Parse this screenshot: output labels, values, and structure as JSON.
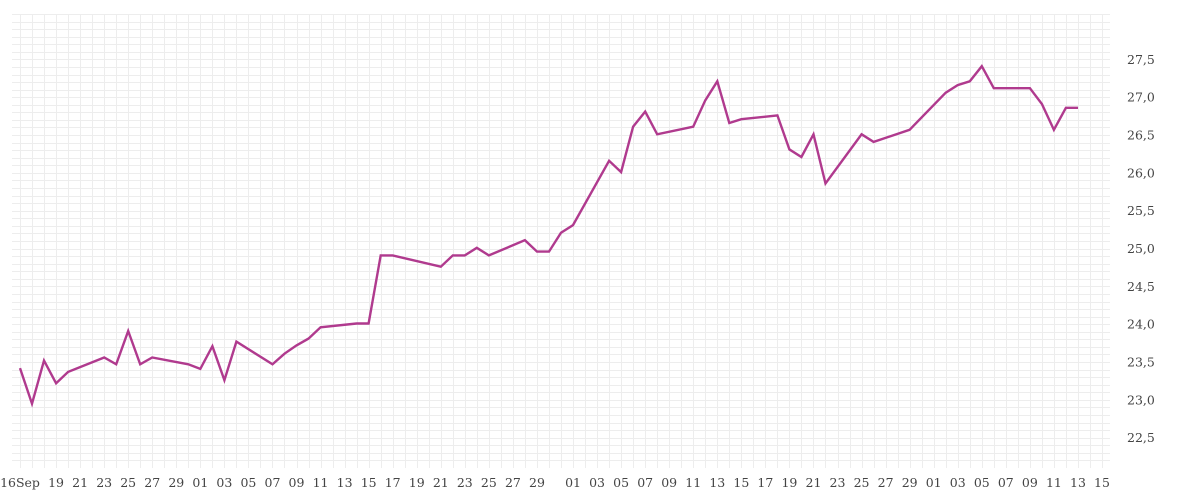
{
  "chart_data": {
    "type": "line",
    "title": "",
    "xlabel": "",
    "ylabel": "",
    "grid": true,
    "line_color": "#b03a8e",
    "grid_color": "#ededed",
    "ylim": [
      22.1,
      28.1
    ],
    "y_ticks": [
      "22,5",
      "23,0",
      "23,5",
      "24,0",
      "24,5",
      "25,0",
      "25,5",
      "26,0",
      "26,5",
      "27,0",
      "27,5"
    ],
    "y_tick_values": [
      22.5,
      23.0,
      23.5,
      24.0,
      24.5,
      25.0,
      25.5,
      26.0,
      26.5,
      27.0,
      27.5
    ],
    "x_tick_labels": [
      "16Sep",
      "19",
      "21",
      "23",
      "25",
      "27",
      "29",
      "01",
      "03",
      "05",
      "07",
      "09",
      "11",
      "13",
      "15",
      "17",
      "19",
      "21",
      "23",
      "25",
      "27",
      "29",
      "01",
      "03",
      "05",
      "07",
      "09",
      "11",
      "13",
      "15",
      "17",
      "19",
      "21",
      "23",
      "25",
      "27",
      "29",
      "01",
      "03",
      "05",
      "07",
      "09",
      "11",
      "13",
      "15"
    ],
    "x_tick_dates": [
      "2025-09-16",
      "2025-09-19",
      "2025-09-21",
      "2025-09-23",
      "2025-09-25",
      "2025-09-27",
      "2025-09-29",
      "2025-10-01",
      "2025-10-03",
      "2025-10-05",
      "2025-10-07",
      "2025-10-09",
      "2025-10-11",
      "2025-10-13",
      "2025-10-15",
      "2025-10-17",
      "2025-10-19",
      "2025-10-21",
      "2025-10-23",
      "2025-10-25",
      "2025-10-27",
      "2025-10-29",
      "2025-11-01",
      "2025-11-03",
      "2025-11-05",
      "2025-11-07",
      "2025-11-09",
      "2025-11-11",
      "2025-11-13",
      "2025-11-15",
      "2025-11-17",
      "2025-11-19",
      "2025-11-21",
      "2025-11-23",
      "2025-11-25",
      "2025-11-27",
      "2025-11-29",
      "2025-12-01",
      "2025-12-03",
      "2025-12-05",
      "2025-12-07",
      "2025-12-09",
      "2025-12-11",
      "2025-12-13",
      "2025-12-15"
    ],
    "xlim": [
      "2025-09-16",
      "2025-12-15"
    ],
    "series": [
      {
        "name": "",
        "x": [
          "2025-09-16",
          "2025-09-17",
          "2025-09-18",
          "2025-09-19",
          "2025-09-20",
          "2025-09-23",
          "2025-09-24",
          "2025-09-25",
          "2025-09-26",
          "2025-09-27",
          "2025-09-30",
          "2025-10-01",
          "2025-10-02",
          "2025-10-03",
          "2025-10-04",
          "2025-10-07",
          "2025-10-08",
          "2025-10-09",
          "2025-10-10",
          "2025-10-11",
          "2025-10-14",
          "2025-10-15",
          "2025-10-16",
          "2025-10-17",
          "2025-10-21",
          "2025-10-22",
          "2025-10-23",
          "2025-10-24",
          "2025-10-25",
          "2025-10-28",
          "2025-10-29",
          "2025-10-30",
          "2025-10-31",
          "2025-11-01",
          "2025-11-04",
          "2025-11-05",
          "2025-11-06",
          "2025-11-07",
          "2025-11-08",
          "2025-11-11",
          "2025-11-12",
          "2025-11-13",
          "2025-11-14",
          "2025-11-15",
          "2025-11-18",
          "2025-11-19",
          "2025-11-20",
          "2025-11-21",
          "2025-11-22",
          "2025-11-25",
          "2025-11-26",
          "2025-11-29",
          "2025-12-02",
          "2025-12-03",
          "2025-12-04",
          "2025-12-05",
          "2025-12-06",
          "2025-12-09",
          "2025-12-10",
          "2025-12-11",
          "2025-12-12",
          "2025-12-13"
        ],
        "y": [
          23.42,
          22.95,
          23.52,
          23.22,
          23.37,
          23.56,
          23.47,
          23.91,
          23.47,
          23.56,
          23.47,
          23.41,
          23.71,
          23.26,
          23.77,
          23.47,
          23.61,
          23.72,
          23.81,
          23.96,
          24.01,
          24.01,
          24.91,
          24.91,
          24.76,
          24.91,
          24.91,
          25.01,
          24.91,
          25.11,
          24.96,
          24.96,
          25.21,
          25.31,
          26.16,
          26.01,
          26.61,
          26.81,
          26.51,
          26.61,
          26.96,
          27.21,
          26.66,
          26.71,
          26.76,
          26.31,
          26.21,
          26.51,
          25.86,
          26.51,
          26.41,
          26.57,
          27.06,
          27.16,
          27.21,
          27.41,
          27.12,
          27.12,
          26.91,
          26.57,
          26.86,
          26.86
        ]
      }
    ]
  }
}
